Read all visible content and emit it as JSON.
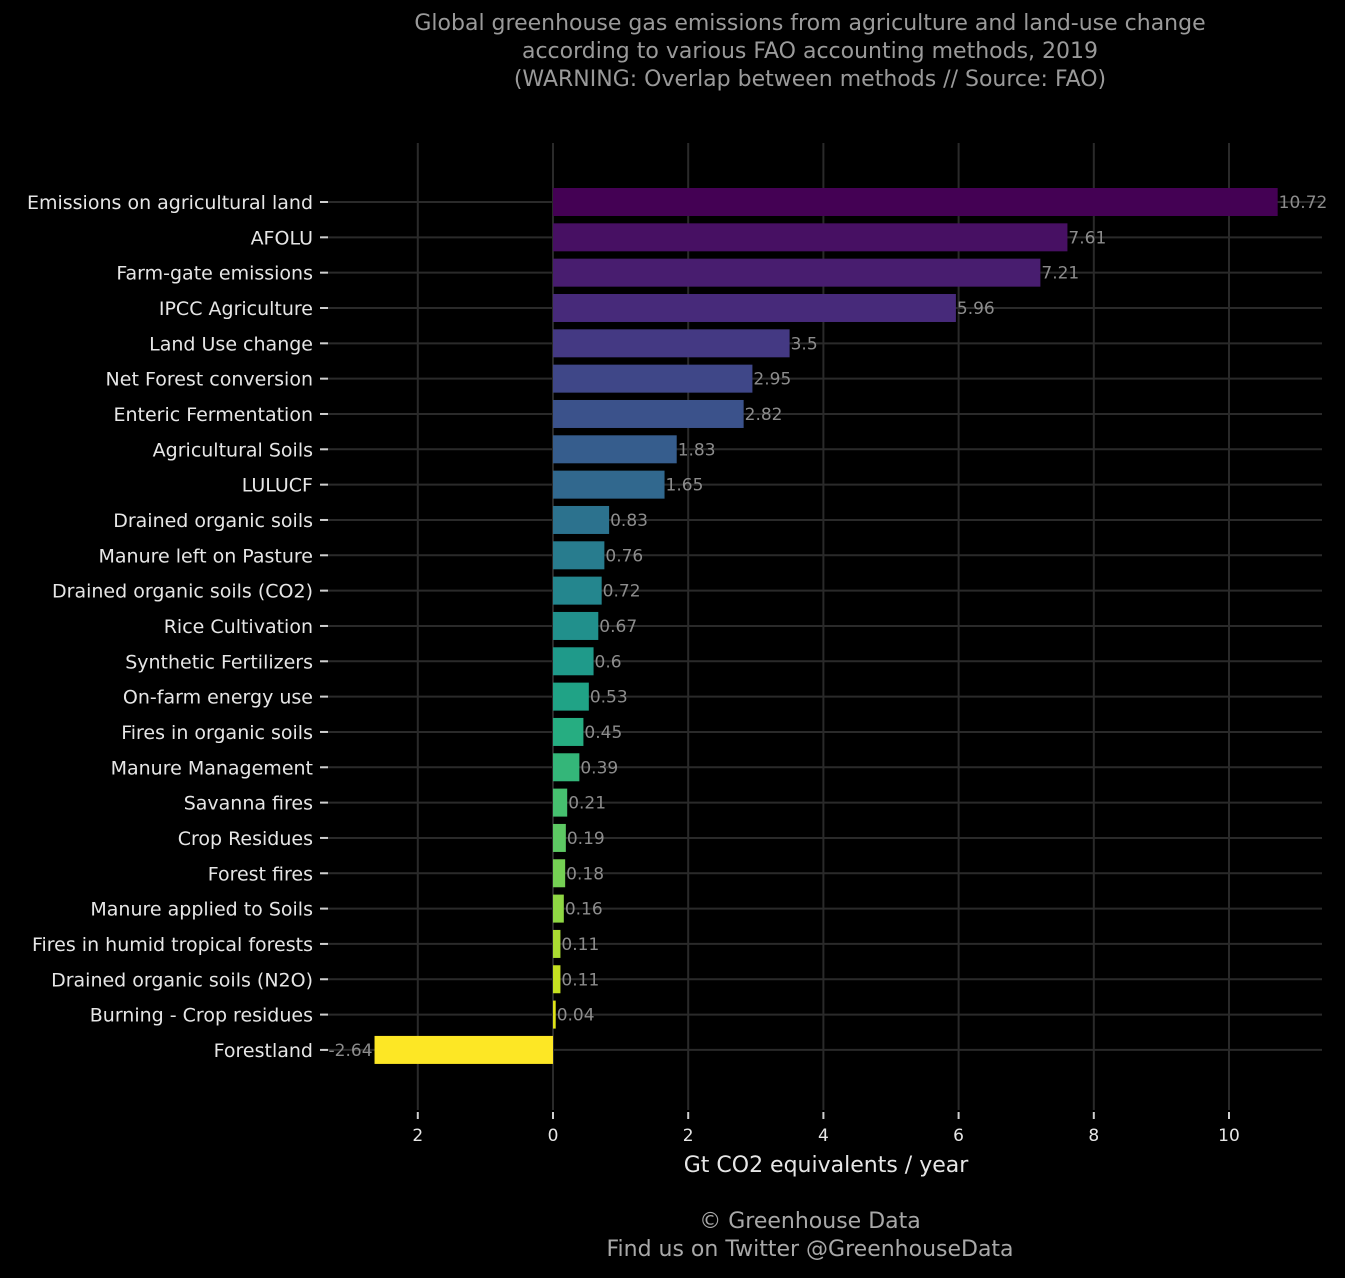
{
  "chart_data": {
    "type": "bar",
    "orientation": "horizontal",
    "title_lines": [
      "Global greenhouse gas emissions from agriculture and land-use change",
      "according to various FAO accounting methods, 2019",
      "(WARNING: Overlap between methods // Source: FAO)"
    ],
    "xlabel": "Gt CO2 equivalents / year",
    "ylabel": "",
    "xlim": [
      -3.2,
      11.4
    ],
    "xticks": [
      -2,
      0,
      2,
      4,
      6,
      8,
      10
    ],
    "xtick_labels": [
      "\u00102",
      "0",
      "2",
      "4",
      "6",
      "8",
      "10"
    ],
    "grid": true,
    "legend": "none",
    "categories": [
      "Emissions on agricultural land",
      "AFOLU",
      "Farm-gate emissions",
      "IPCC Agriculture",
      "Land Use change",
      "Net Forest conversion",
      "Enteric Fermentation",
      "Agricultural Soils",
      "LULUCF",
      "Drained organic soils",
      "Manure left on Pasture",
      "Drained organic soils (CO2)",
      "Rice Cultivation",
      "Synthetic Fertilizers",
      "On-farm energy use",
      "Fires in organic soils",
      "Manure Management",
      "Savanna fires",
      "Crop Residues",
      "Forest fires",
      "Manure applied to Soils",
      "Fires in humid tropical forests",
      "Drained organic soils (N2O)",
      "Burning - Crop residues",
      "Forestland"
    ],
    "values": [
      10.72,
      7.61,
      7.21,
      5.96,
      3.5,
      2.95,
      2.82,
      1.83,
      1.65,
      0.83,
      0.76,
      0.72,
      0.67,
      0.6,
      0.53,
      0.45,
      0.39,
      0.21,
      0.19,
      0.18,
      0.16,
      0.11,
      0.11,
      0.04,
      -2.64
    ],
    "value_labels": [
      "10.72",
      "7.61",
      "7.21",
      "5.96",
      "3.5",
      "2.95",
      "2.82",
      "1.83",
      "1.65",
      "0.83",
      "0.76",
      "0.72",
      "0.67",
      "0.6",
      "0.53",
      "0.45",
      "0.39",
      "0.21",
      "0.19",
      "0.18",
      "0.16",
      "0.11",
      "0.11",
      "0.04",
      "-2.64"
    ],
    "colors": [
      "#440154",
      "#471063",
      "#481D6F",
      "#472A7A",
      "#443983",
      "#3F4788",
      "#3B528B",
      "#365D8D",
      "#31688E",
      "#2C728E",
      "#287C8E",
      "#24868E",
      "#21908C",
      "#1F9A8A",
      "#20A386",
      "#26AD81",
      "#34B679",
      "#46C06F",
      "#5DC863",
      "#75D054",
      "#8FD744",
      "#AADC32",
      "#C5E021",
      "#DFE318",
      "#FDE725"
    ]
  },
  "caption_lines": [
    "© Greenhouse Data",
    "Find us on Twitter @GreenhouseData"
  ],
  "style": {
    "background": "#000000",
    "grid_color": "#2a2a2a",
    "tick_label_color": "#e6e6e6",
    "value_label_color": "#8c8c8c",
    "title_color": "#9a9a9a"
  }
}
